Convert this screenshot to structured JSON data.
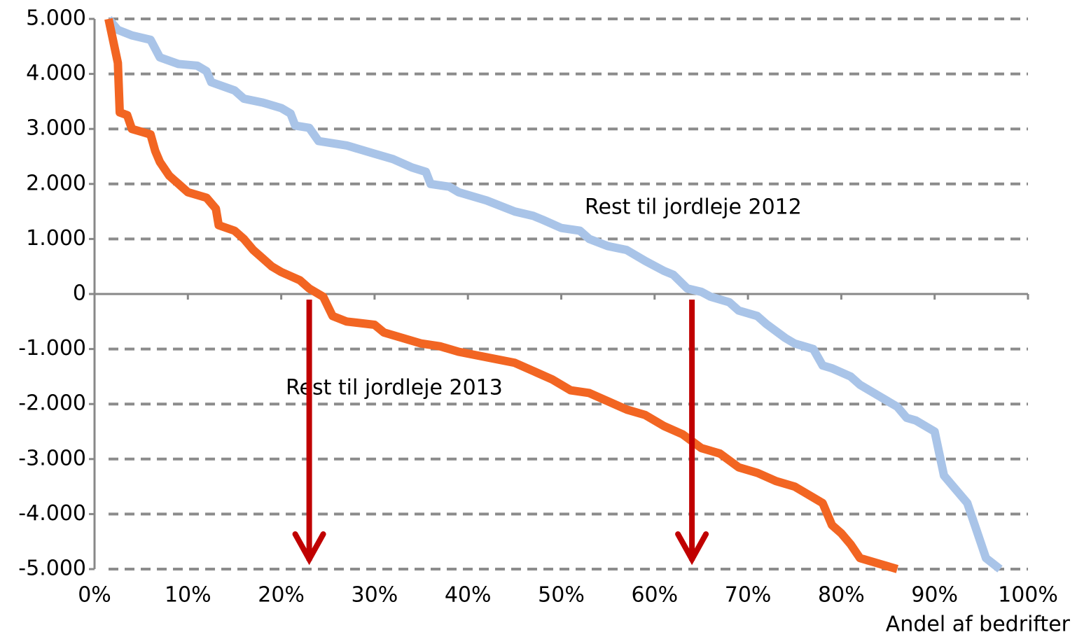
{
  "chart_data": {
    "type": "line",
    "xlabel": "Andel af bedrifter",
    "annotations": [
      "Rest til jordleje 2012",
      "Rest til jordleje 2013"
    ],
    "arrows_x": [
      23,
      64
    ],
    "arrow_color": "#c00000",
    "grid": true,
    "xlim": [
      0,
      100
    ],
    "ylim": [
      -5000,
      5000
    ],
    "xticks": [
      {
        "value": 0,
        "label": "0%"
      },
      {
        "value": 10,
        "label": "10%"
      },
      {
        "value": 20,
        "label": "20%"
      },
      {
        "value": 30,
        "label": "30%"
      },
      {
        "value": 40,
        "label": "40%"
      },
      {
        "value": 50,
        "label": "50%"
      },
      {
        "value": 60,
        "label": "60%"
      },
      {
        "value": 70,
        "label": "70%"
      },
      {
        "value": 80,
        "label": "80%"
      },
      {
        "value": 90,
        "label": "90%"
      },
      {
        "value": 100,
        "label": "100%"
      }
    ],
    "yticks": [
      {
        "value": 5000,
        "label": "5.000"
      },
      {
        "value": 4000,
        "label": "4.000"
      },
      {
        "value": 3000,
        "label": "3.000"
      },
      {
        "value": 2000,
        "label": "2.000"
      },
      {
        "value": 1000,
        "label": "1.000"
      },
      0,
      {
        "value": -1000,
        "label": "-1.000"
      },
      {
        "value": -2000,
        "label": "-2.000"
      },
      {
        "value": -3000,
        "label": "-3.000"
      },
      {
        "value": -4000,
        "label": "-4.000"
      },
      {
        "value": -5000,
        "label": "-5.000"
      }
    ],
    "series": [
      {
        "color": "#a9c4e8",
        "x": [
          1.5,
          2.5,
          4,
          6,
          7,
          9,
          11,
          12,
          12.5,
          15,
          16,
          18,
          20,
          21,
          21.5,
          23,
          24,
          27,
          30,
          32,
          34,
          35.5,
          36,
          38,
          39,
          42,
          45,
          47,
          48,
          50,
          52,
          53,
          55,
          57,
          59,
          61,
          62,
          63.5,
          65,
          66,
          68,
          69,
          71,
          72,
          74,
          75,
          77,
          78,
          79,
          81,
          82,
          84,
          85,
          86,
          87,
          88,
          90,
          91,
          92,
          93.5,
          94.5,
          95.5,
          97
        ],
        "values": [
          5000,
          4800,
          4700,
          4620,
          4300,
          4180,
          4150,
          4050,
          3850,
          3700,
          3550,
          3480,
          3380,
          3280,
          3060,
          3020,
          2780,
          2700,
          2550,
          2450,
          2300,
          2220,
          2000,
          1950,
          1850,
          1700,
          1500,
          1420,
          1350,
          1200,
          1150,
          1000,
          870,
          800,
          600,
          420,
          350,
          100,
          40,
          -50,
          -150,
          -300,
          -400,
          -550,
          -800,
          -900,
          -1000,
          -1300,
          -1350,
          -1500,
          -1650,
          -1850,
          -1950,
          -2050,
          -2250,
          -2300,
          -2500,
          -3300,
          -3500,
          -3800,
          -4300,
          -4800,
          -5000
        ]
      },
      {
        "color": "#f26522",
        "x": [
          1.5,
          2,
          2.5,
          2.7,
          3.5,
          4,
          5,
          6,
          6.5,
          7,
          8,
          9,
          10,
          12,
          13,
          13.3,
          15,
          16,
          17,
          18,
          19,
          20,
          22,
          23,
          24.5,
          25.5,
          27,
          30,
          31,
          33,
          35,
          37,
          39,
          42,
          45,
          47,
          49,
          51,
          53,
          55,
          57,
          59,
          61,
          63,
          65,
          67,
          69,
          71,
          73,
          75,
          77,
          78,
          79,
          80,
          81,
          82,
          84,
          86
        ],
        "values": [
          5000,
          4600,
          4200,
          3300,
          3250,
          3000,
          2950,
          2900,
          2600,
          2400,
          2150,
          2000,
          1850,
          1750,
          1550,
          1250,
          1150,
          1000,
          800,
          650,
          500,
          400,
          250,
          100,
          -50,
          -400,
          -500,
          -560,
          -700,
          -800,
          -900,
          -950,
          -1050,
          -1150,
          -1250,
          -1400,
          -1550,
          -1750,
          -1800,
          -1950,
          -2100,
          -2200,
          -2400,
          -2550,
          -2800,
          -2900,
          -3150,
          -3250,
          -3400,
          -3500,
          -3700,
          -3800,
          -4200,
          -4350,
          -4550,
          -4800,
          -4900,
          -5000
        ]
      }
    ]
  }
}
